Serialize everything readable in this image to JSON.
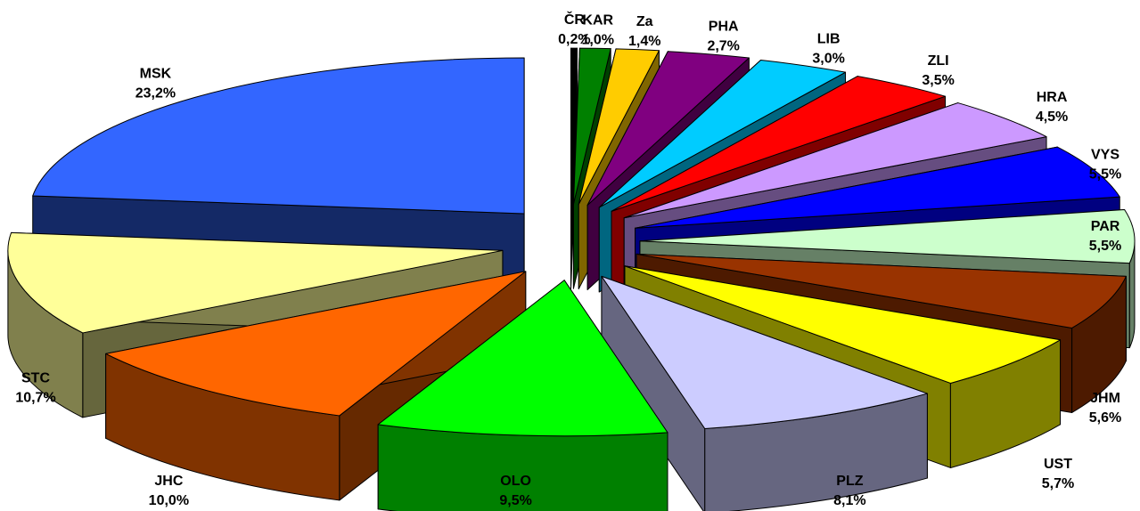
{
  "chart_data": {
    "type": "pie",
    "style": "3d-exploded",
    "title": "",
    "slices": [
      {
        "label": "ČR",
        "value": 0.2,
        "value_text": "0,2%",
        "color": "#000000"
      },
      {
        "label": "KAR",
        "value": 1.0,
        "value_text": "1,0%",
        "color": "#008000"
      },
      {
        "label": "Za",
        "value": 1.4,
        "value_text": "1,4%",
        "color": "#FFCC00"
      },
      {
        "label": "PHA",
        "value": 2.7,
        "value_text": "2,7%",
        "color": "#800080"
      },
      {
        "label": "LIB",
        "value": 3.0,
        "value_text": "3,0%",
        "color": "#00CCFF"
      },
      {
        "label": "ZLI",
        "value": 3.5,
        "value_text": "3,5%",
        "color": "#FF0000"
      },
      {
        "label": "HRA",
        "value": 4.5,
        "value_text": "4,5%",
        "color": "#CC99FF"
      },
      {
        "label": "VYS",
        "value": 5.5,
        "value_text": "5,5%",
        "color": "#0000FF"
      },
      {
        "label": "PAR",
        "value": 5.5,
        "value_text": "5,5%",
        "color": "#CCFFCC"
      },
      {
        "label": "JHM",
        "value": 5.6,
        "value_text": "5,6%",
        "color": "#993300"
      },
      {
        "label": "UST",
        "value": 5.7,
        "value_text": "5,7%",
        "color": "#FFFF00"
      },
      {
        "label": "PLZ",
        "value": 8.1,
        "value_text": "8,1%",
        "color": "#CCCCFF"
      },
      {
        "label": "OLO",
        "value": 9.5,
        "value_text": "9,5%",
        "color": "#00FF00"
      },
      {
        "label": "JHC",
        "value": 10.0,
        "value_text": "10,0%",
        "color": "#FF6600"
      },
      {
        "label": "STC",
        "value": 10.7,
        "value_text": "10,7%",
        "color": "#FFFF99"
      },
      {
        "label": "MSK",
        "value": 23.2,
        "value_text": "23,2%",
        "color": "#3366FF"
      }
    ]
  }
}
